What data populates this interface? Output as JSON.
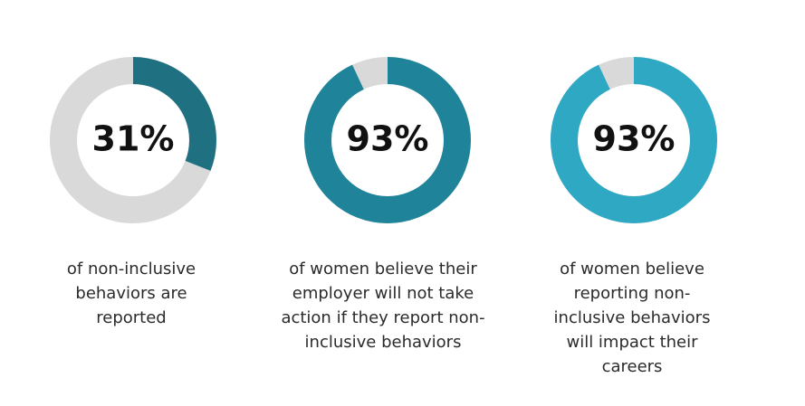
{
  "chart_data": [
    {
      "type": "pie",
      "value": 31,
      "label": "31%",
      "caption_lines": [
        "of non-inclusive",
        "behaviors are",
        "reported"
      ],
      "color": "#1f7182",
      "track_color": "#d9d9d9"
    },
    {
      "type": "pie",
      "value": 93,
      "label": "93%",
      "caption_lines": [
        "of women believe their",
        "employer will not take",
        "action if they report non-",
        "inclusive behaviors"
      ],
      "color": "#1f8499",
      "track_color": "#d9d9d9"
    },
    {
      "type": "pie",
      "value": 93,
      "label": "93%",
      "caption_lines": [
        "of women believe",
        "reporting non-",
        "inclusive behaviors",
        "will impact their",
        "careers"
      ],
      "color": "#2fa8c4",
      "track_color": "#d9d9d9"
    }
  ]
}
